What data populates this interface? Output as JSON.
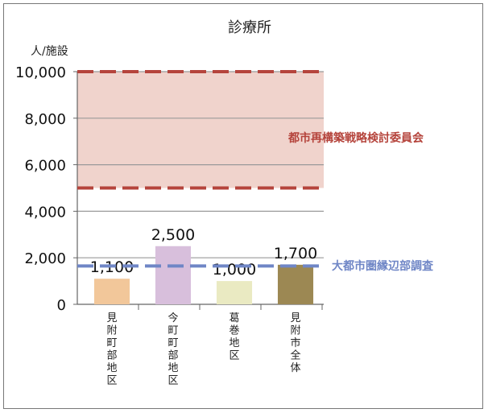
{
  "chart_data": {
    "type": "bar",
    "title": "診療所",
    "ylabel": "人/施設",
    "ylim": [
      0,
      10000
    ],
    "yticks": [
      "0",
      "2,000",
      "4,000",
      "6,000",
      "8,000",
      "10,000"
    ],
    "ytick_values": [
      0,
      2000,
      4000,
      6000,
      8000,
      10000
    ],
    "grid": true,
    "categories": [
      "見附町部地区",
      "今町町部地区",
      "葛巻地区",
      "見附市全体"
    ],
    "values": [
      1100,
      2500,
      1000,
      1700
    ],
    "data_labels": [
      "1,100",
      "2,500",
      "1,000",
      "1,700"
    ],
    "bar_colors": [
      "#f2c79a",
      "#d8bfdc",
      "#eaeac2",
      "#9c8853"
    ],
    "reference": [
      {
        "name": "都市再構築戦略検討委員会",
        "band": [
          5000,
          10000
        ],
        "color": "#b5443c",
        "fill": "#f0d3cc"
      },
      {
        "name": "大都市圏縁辺部調査",
        "value": 1650,
        "color": "#6f86c6"
      }
    ]
  }
}
